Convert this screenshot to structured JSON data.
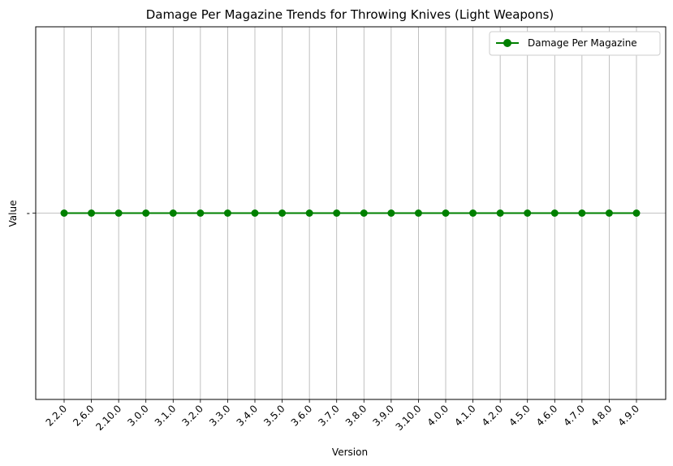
{
  "chart_data": {
    "type": "line",
    "title": "Damage Per Magazine Trends for Throwing Knives (Light Weapons)",
    "xlabel": "Version",
    "ylabel": "Value",
    "categories": [
      "2.2.0",
      "2.6.0",
      "2.10.0",
      "3.0.0",
      "3.1.0",
      "3.2.0",
      "3.3.0",
      "3.4.0",
      "3.5.0",
      "3.6.0",
      "3.7.0",
      "3.8.0",
      "3.9.0",
      "3.10.0",
      "4.0.0",
      "4.1.0",
      "4.2.0",
      "4.5.0",
      "4.6.0",
      "4.7.0",
      "4.8.0",
      "4.9.0"
    ],
    "y_tick_labels": [
      "-"
    ],
    "series": [
      {
        "name": "Damage Per Magazine",
        "values": [
          "-",
          "-",
          "-",
          "-",
          "-",
          "-",
          "-",
          "-",
          "-",
          "-",
          "-",
          "-",
          "-",
          "-",
          "-",
          "-",
          "-",
          "-",
          "-",
          "-",
          "-",
          "-"
        ],
        "color": "#008000",
        "marker": "circle"
      }
    ],
    "grid": true,
    "legend_position": "top-right"
  }
}
